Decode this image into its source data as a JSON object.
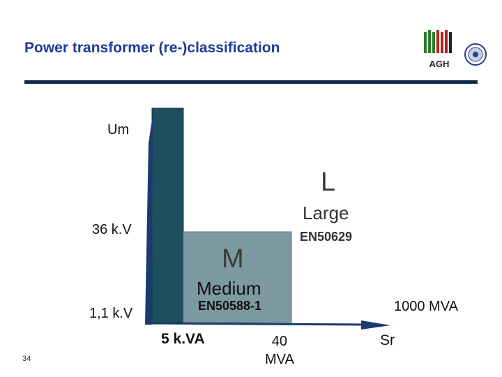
{
  "title": "Power transformer (re-)classification",
  "logo": {
    "text": "AGH"
  },
  "axes": {
    "y_label": "Um",
    "x_label": "Sr",
    "y_ticks": [
      "36 k.V",
      "1,1 k.V"
    ],
    "x_ticks": {
      "small": "5 k.VA",
      "medium_line1": "40",
      "medium_line2": "MVA",
      "large": "1000 MVA"
    }
  },
  "regions": {
    "large": {
      "letter": "L",
      "name": "Large",
      "standard": "EN50629"
    },
    "medium": {
      "letter": "M",
      "name": "Medium",
      "standard": "EN50588-1"
    }
  },
  "colors": {
    "dark_teal": "#1d4f5e",
    "medium_gray": "#7c98a0",
    "title_blue": "#1f3b9a",
    "rule": "#0b2a4a",
    "arrow": "#1a3a70"
  },
  "page_number": "34"
}
